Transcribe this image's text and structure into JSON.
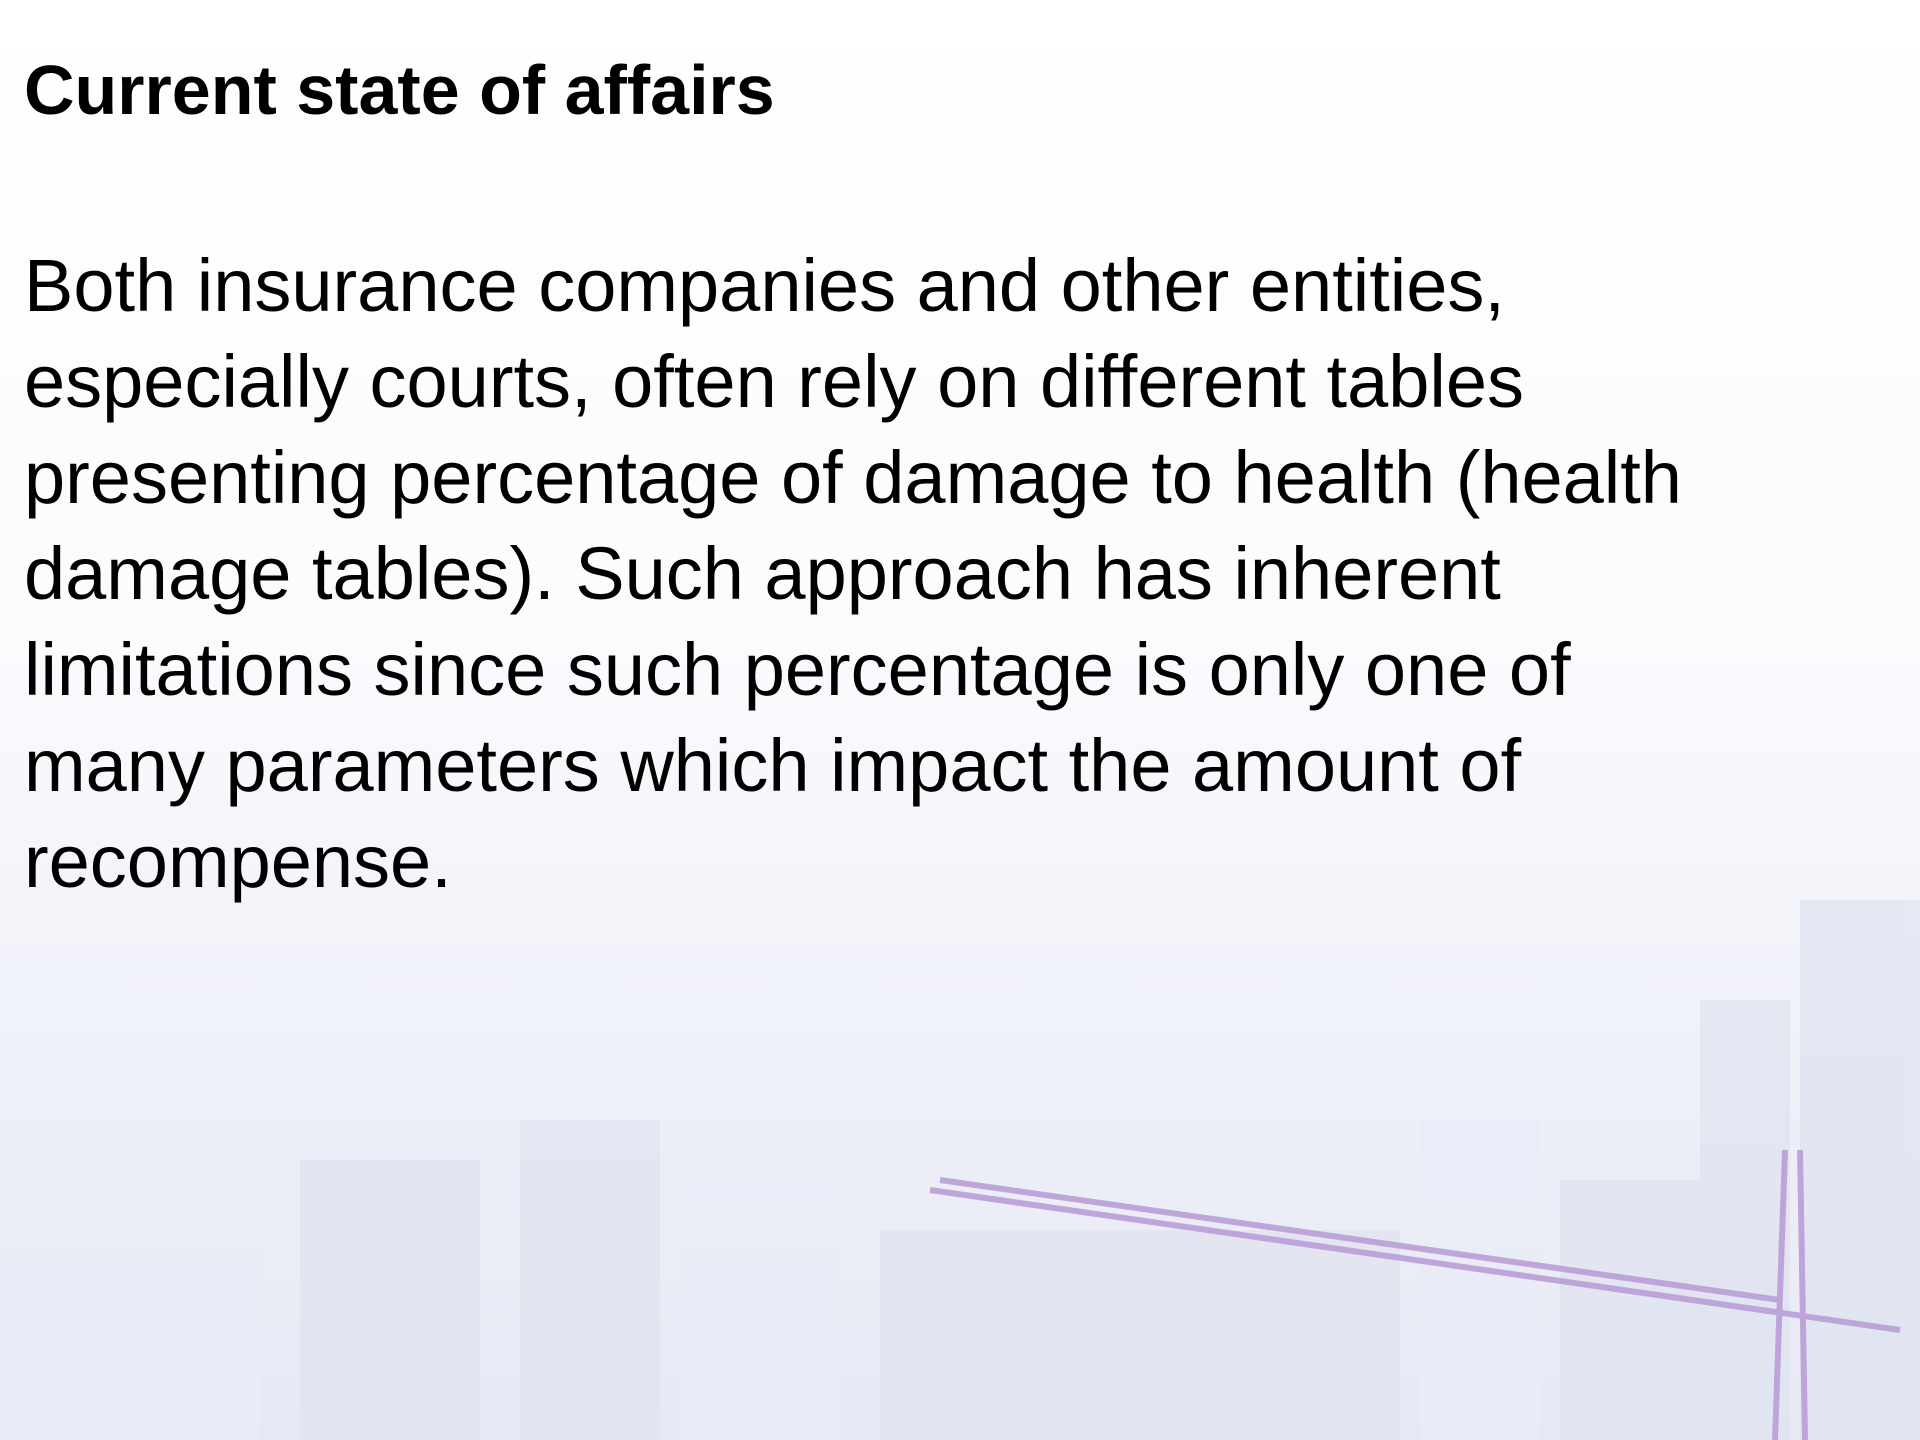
{
  "title": "Current state of affairs",
  "body_lines": [
    "Both insurance companies and other entities,",
    "especially courts, often rely on different tables",
    "presenting percentage of damage to health (health",
    "damage tables). Such approach has inherent",
    "limitations since such percentage is only one of",
    "many parameters which impact the amount of",
    "recompense."
  ]
}
